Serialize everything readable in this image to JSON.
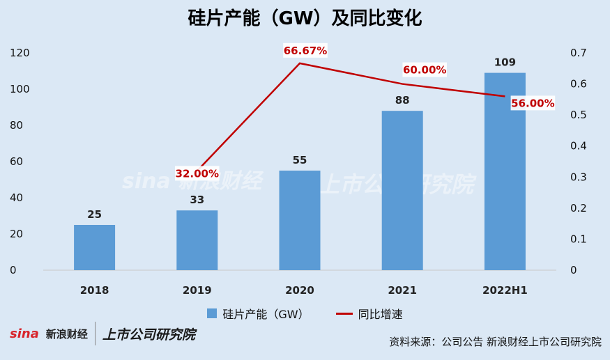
{
  "title": "硅片产能（GW）及同比变化",
  "chart_data": {
    "type": "bar",
    "title": "硅片产能（GW）及同比变化",
    "categories": [
      "2018",
      "2019",
      "2020",
      "2021",
      "2022H1"
    ],
    "series": [
      {
        "name": "硅片产能（GW）",
        "type": "bar",
        "axis": "left",
        "values": [
          25,
          33,
          55,
          88,
          109
        ]
      },
      {
        "name": "同比增速",
        "type": "line",
        "axis": "right",
        "values": [
          null,
          0.32,
          0.6667,
          0.6,
          0.56
        ],
        "labels": [
          "",
          "32.00%",
          "66.67%",
          "60.00%",
          "56.00%"
        ]
      }
    ],
    "y_left": {
      "min": 0,
      "max": 120,
      "ticks": [
        "0",
        "20",
        "40",
        "60",
        "80",
        "100",
        "120"
      ]
    },
    "y_right": {
      "min": 0,
      "max": 0.7,
      "ticks": [
        "0",
        "0.1",
        "0.2",
        "0.3",
        "0.4",
        "0.5",
        "0.6",
        "0.7"
      ]
    },
    "colors": {
      "bar": "#5b9bd5",
      "line": "#c00000"
    },
    "legend_position": "bottom",
    "grid": false
  },
  "watermark": {
    "text1": "sina 新浪财经",
    "text2": "上市公司研究院"
  },
  "footer": {
    "sina_mark": "sina",
    "sina_name": "新浪财经",
    "institute": "上市公司研究院",
    "source": "资料来源：公司公告 新浪财经上市公司研究院"
  }
}
